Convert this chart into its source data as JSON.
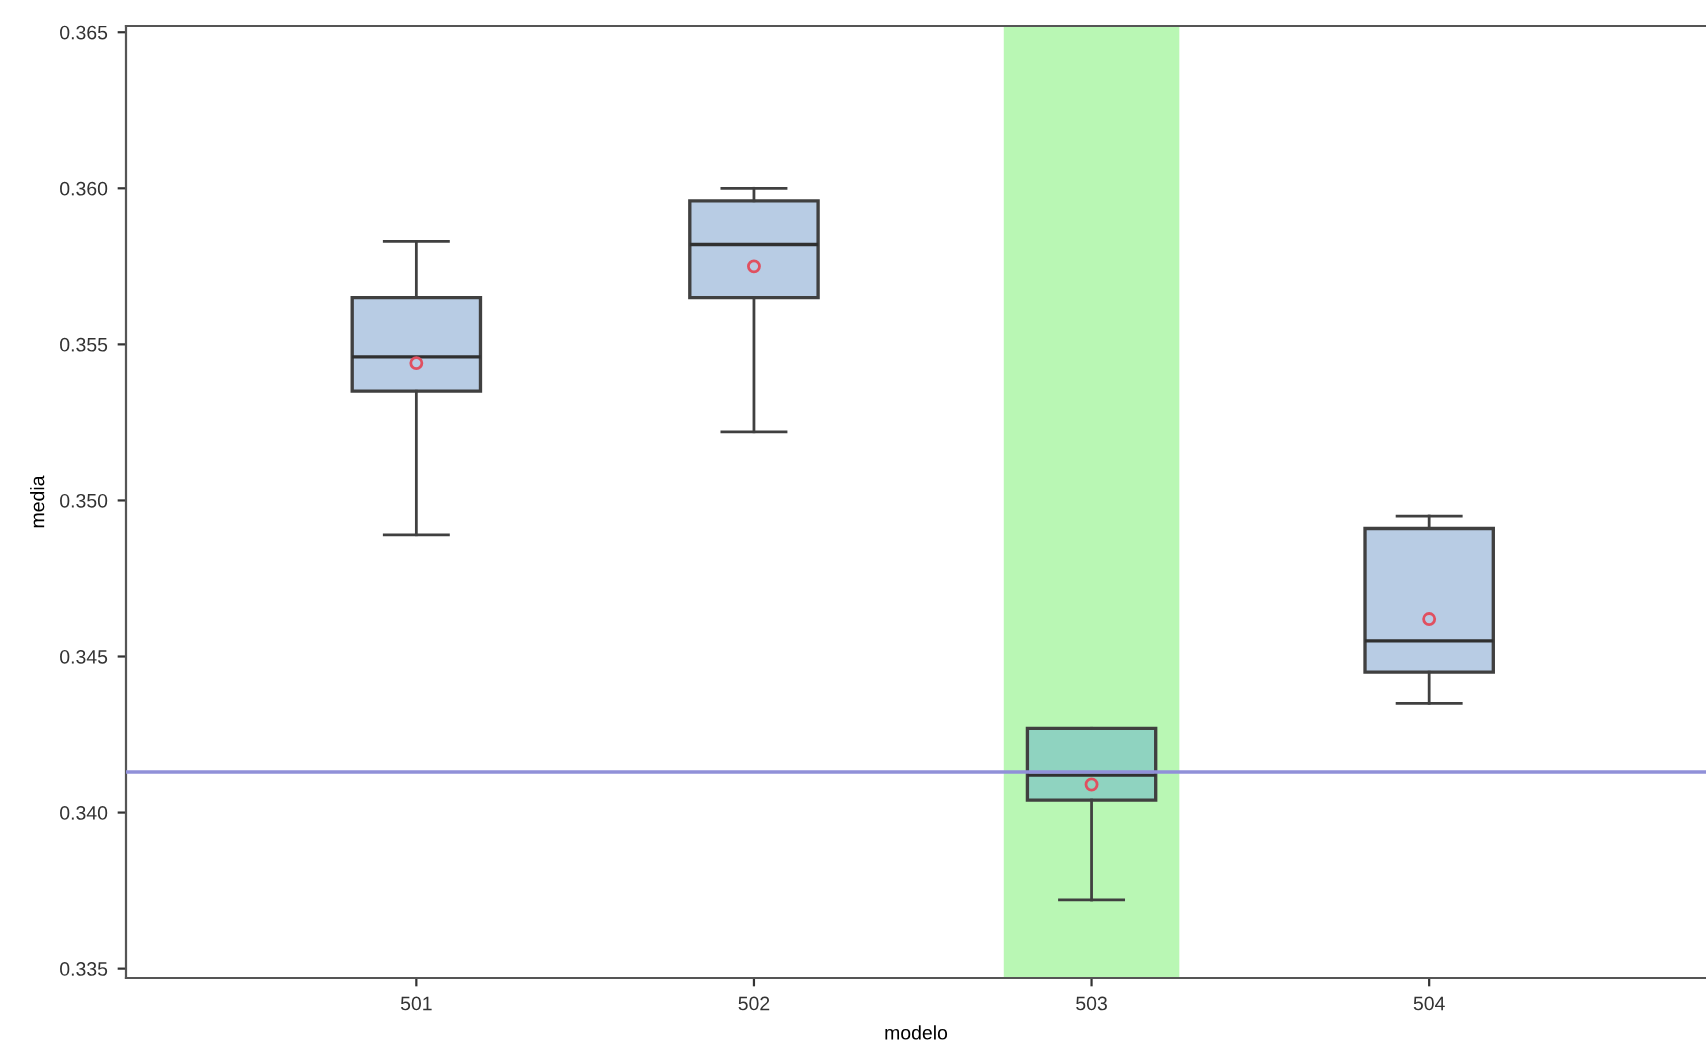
{
  "chart_data": {
    "type": "box",
    "xlabel": "modelo",
    "ylabel": "media",
    "categories": [
      "501",
      "502",
      "503",
      "504"
    ],
    "colors": [
      "#b8cce4",
      "#b8cce4",
      "#8fd3c0",
      "#b8cce4"
    ],
    "boxes": [
      {
        "low": 0.3489,
        "q1": 0.3535,
        "median": 0.3546,
        "q3": 0.3565,
        "high": 0.3583,
        "mean": 0.3544
      },
      {
        "low": 0.3522,
        "q1": 0.3565,
        "median": 0.3582,
        "q3": 0.3596,
        "high": 0.36,
        "mean": 0.3575
      },
      {
        "low": 0.3372,
        "q1": 0.3404,
        "median": 0.3412,
        "q3": 0.3427,
        "high": 0.3427,
        "mean": 0.3409
      },
      {
        "low": 0.3435,
        "q1": 0.3445,
        "median": 0.3455,
        "q3": 0.3491,
        "high": 0.3495,
        "mean": 0.3462
      }
    ],
    "ylim": [
      0.3347,
      0.3652
    ],
    "yticks": [
      {
        "value": 0.335,
        "label": "0.335"
      },
      {
        "value": 0.34,
        "label": "0.340"
      },
      {
        "value": 0.345,
        "label": "0.345"
      },
      {
        "value": 0.35,
        "label": "0.350"
      },
      {
        "value": 0.355,
        "label": "0.355"
      },
      {
        "value": 0.36,
        "label": "0.360"
      },
      {
        "value": 0.365,
        "label": "0.365"
      }
    ],
    "ref_lines": [
      {
        "axis": "y",
        "value": 0.3413,
        "color": "#9090d8"
      }
    ],
    "bands": [
      {
        "axis": "x",
        "from": "503",
        "to": "503",
        "color": "#b9f7b4"
      }
    ],
    "grid": false,
    "legend": false
  }
}
